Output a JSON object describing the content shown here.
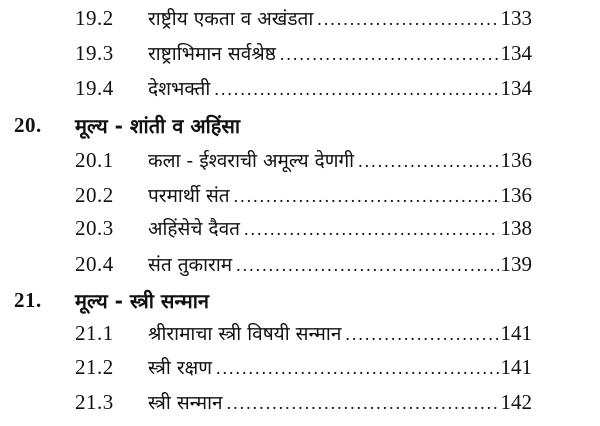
{
  "entries": [
    {
      "type": "sub",
      "number": "19.2",
      "title": "राष्ट्रीय एकता व अखंडता",
      "page": "133"
    },
    {
      "type": "sub",
      "number": "19.3",
      "title": "राष्ट्राभिमान सर्वश्रेष्ठ",
      "page": "134"
    },
    {
      "type": "sub",
      "number": "19.4",
      "title": "देशभक्ती",
      "page": "134"
    },
    {
      "type": "chapter",
      "number": "20.",
      "title": "मूल्य - शांती व अहिंसा"
    },
    {
      "type": "sub",
      "number": "20.1",
      "title": "कला - ईश्वराची अमूल्य देणगी",
      "page": "136"
    },
    {
      "type": "sub",
      "number": "20.2",
      "title": "परमार्थी संत",
      "page": "136"
    },
    {
      "type": "sub",
      "number": "20.3",
      "title": "अहिंसेचे दैवत",
      "page": "138"
    },
    {
      "type": "sub",
      "number": "20.4",
      "title": "संत तुकाराम",
      "page": "139"
    },
    {
      "type": "chapter",
      "number": "21.",
      "title": "मूल्य - स्त्री सन्मान"
    },
    {
      "type": "sub",
      "number": "21.1",
      "title": "श्रीरामाचा स्त्री विषयी सन्मान",
      "page": "141"
    },
    {
      "type": "sub",
      "number": "21.2",
      "title": "स्त्री रक्षण",
      "page": "141"
    },
    {
      "type": "sub",
      "number": "21.3",
      "title": "स्त्री सन्मान",
      "page": "142"
    }
  ]
}
